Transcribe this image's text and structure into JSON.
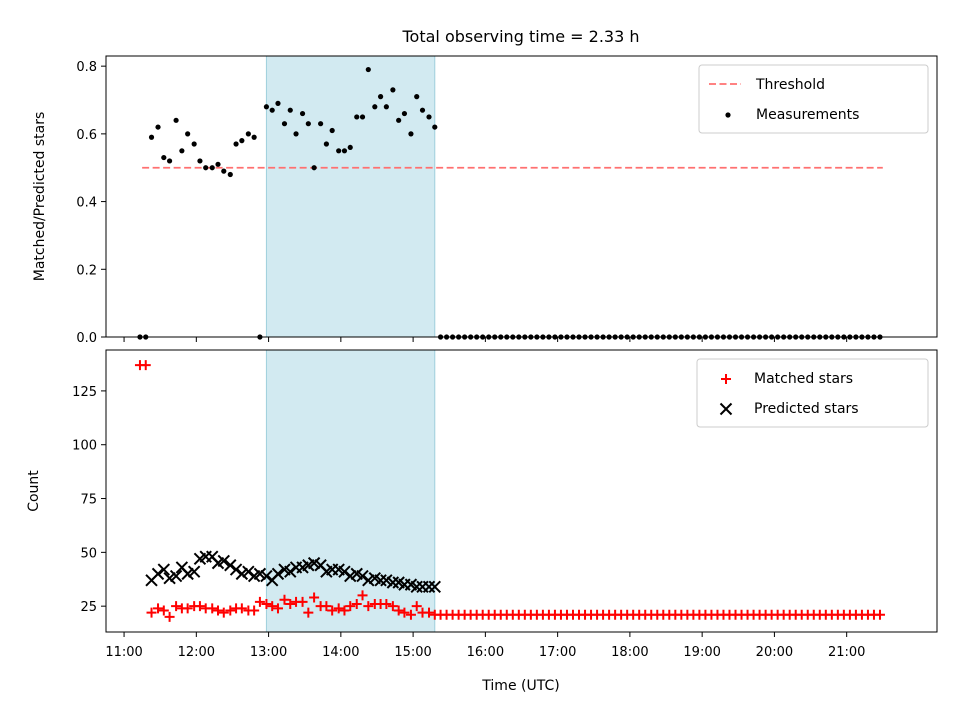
{
  "chart_data": {
    "title": "Total observing time = 2.33 h",
    "xlabel": "Time (UTC)",
    "x_unit": "hours UTC",
    "xlim": [
      10.75,
      22.25
    ],
    "xticks": [
      11,
      12,
      13,
      14,
      15,
      16,
      17,
      18,
      19,
      20,
      21
    ],
    "xtick_labels": [
      "11:00",
      "12:00",
      "13:00",
      "14:00",
      "15:00",
      "16:00",
      "17:00",
      "18:00",
      "19:00",
      "20:00",
      "21:00"
    ],
    "observing_window": [
      12.97,
      15.3
    ],
    "panels": [
      {
        "type": "scatter",
        "ylabel": "Matched/Predicted stars",
        "ylim": [
          0,
          0.83
        ],
        "yticks": [
          0.0,
          0.2,
          0.4,
          0.6,
          0.8
        ],
        "ytick_labels": [
          "0.0",
          "0.2",
          "0.4",
          "0.6",
          "0.8"
        ],
        "legend_position": "top-right",
        "series": [
          {
            "name": "Threshold",
            "type": "line",
            "style": "dashed",
            "color": "#ff7070",
            "x": [
              11.25,
              21.5
            ],
            "y": [
              0.5,
              0.5
            ]
          },
          {
            "name": "Measurements",
            "type": "scatter",
            "color": "#000000",
            "x": [
              11.22,
              11.3,
              11.38,
              11.47,
              11.55,
              11.63,
              11.72,
              11.8,
              11.88,
              11.97,
              12.05,
              12.13,
              12.22,
              12.3,
              12.38,
              12.47,
              12.55,
              12.63,
              12.72,
              12.8,
              12.88,
              12.97,
              13.05,
              13.13,
              13.22,
              13.3,
              13.38,
              13.47,
              13.55,
              13.63,
              13.72,
              13.8,
              13.88,
              13.97,
              14.05,
              14.13,
              14.22,
              14.3,
              14.38,
              14.47,
              14.55,
              14.63,
              14.72,
              14.8,
              14.88,
              14.97,
              15.05,
              15.13,
              15.22,
              15.3
            ],
            "y": [
              0.0,
              0.0,
              0.59,
              0.62,
              0.53,
              0.52,
              0.64,
              0.55,
              0.6,
              0.57,
              0.52,
              0.5,
              0.5,
              0.51,
              0.49,
              0.48,
              0.57,
              0.58,
              0.6,
              0.59,
              0.0,
              0.68,
              0.67,
              0.69,
              0.63,
              0.67,
              0.6,
              0.66,
              0.63,
              0.5,
              0.63,
              0.57,
              0.61,
              0.55,
              0.55,
              0.56,
              0.65,
              0.65,
              0.79,
              0.68,
              0.71,
              0.68,
              0.73,
              0.64,
              0.66,
              0.6,
              0.71,
              0.67,
              0.65,
              0.62
            ]
          },
          {
            "name": "Measurements (after window)",
            "type": "scatter",
            "color": "#000000",
            "x_start": 15.38,
            "x_step": 0.0833,
            "x_end": 21.5,
            "y": 0.0
          }
        ]
      },
      {
        "type": "scatter",
        "ylabel": "Count",
        "ylim": [
          13,
          144
        ],
        "yticks": [
          25,
          50,
          75,
          100,
          125
        ],
        "ytick_labels": [
          "25",
          "50",
          "75",
          "100",
          "125"
        ],
        "legend_position": "top-right",
        "series": [
          {
            "name": "Matched stars",
            "marker": "+",
            "color": "#ff0000",
            "x": [
              11.22,
              11.3,
              11.38,
              11.47,
              11.55,
              11.63,
              11.72,
              11.8,
              11.88,
              11.97,
              12.05,
              12.13,
              12.22,
              12.3,
              12.38,
              12.47,
              12.55,
              12.63,
              12.72,
              12.8,
              12.88,
              12.97,
              13.05,
              13.13,
              13.22,
              13.3,
              13.38,
              13.47,
              13.55,
              13.63,
              13.72,
              13.8,
              13.88,
              13.97,
              14.05,
              14.13,
              14.22,
              14.3,
              14.38,
              14.47,
              14.55,
              14.63,
              14.72,
              14.8,
              14.88,
              14.97,
              15.05,
              15.13,
              15.22,
              15.3
            ],
            "y": [
              137,
              137,
              22,
              24,
              23,
              20,
              25,
              24,
              24,
              25,
              25,
              24,
              24,
              23,
              22,
              23,
              24,
              24,
              23,
              23,
              27,
              26,
              25,
              24,
              28,
              26,
              27,
              27,
              22,
              29,
              25,
              25,
              23,
              24,
              23,
              25,
              26,
              30,
              25,
              26,
              26,
              26,
              25,
              23,
              22,
              21,
              25,
              22,
              22,
              21
            ]
          },
          {
            "name": "Matched stars (after window)",
            "marker": "+",
            "color": "#ff0000",
            "x_start": 15.38,
            "x_step": 0.0833,
            "x_end": 21.5,
            "y": 21
          },
          {
            "name": "Predicted stars",
            "marker": "x",
            "color": "#000000",
            "x": [
              11.38,
              11.47,
              11.55,
              11.63,
              11.72,
              11.8,
              11.88,
              11.97,
              12.05,
              12.13,
              12.22,
              12.3,
              12.38,
              12.47,
              12.55,
              12.63,
              12.72,
              12.8,
              12.88,
              12.97,
              13.05,
              13.13,
              13.22,
              13.3,
              13.38,
              13.47,
              13.55,
              13.63,
              13.72,
              13.8,
              13.88,
              13.97,
              14.05,
              14.13,
              14.22,
              14.3,
              14.38,
              14.47,
              14.55,
              14.63,
              14.72,
              14.8,
              14.88,
              14.97,
              15.05,
              15.13,
              15.22,
              15.3
            ],
            "y": [
              37,
              40,
              42,
              38,
              39,
              43,
              40,
              41,
              47,
              48,
              48,
              45,
              46,
              44,
              42,
              40,
              41,
              39,
              40,
              39,
              37,
              40,
              42,
              41,
              43,
              43,
              44,
              45,
              44,
              41,
              42,
              42,
              41,
              39,
              40,
              39,
              37,
              38,
              37,
              37,
              36,
              36,
              35,
              35,
              34,
              34,
              34,
              34
            ]
          }
        ]
      }
    ]
  }
}
